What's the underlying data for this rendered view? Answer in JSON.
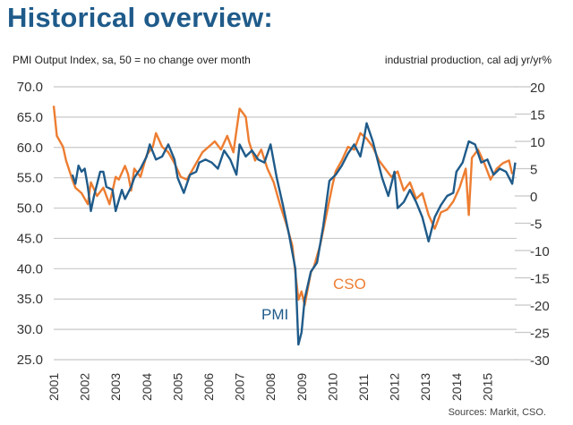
{
  "page": {
    "title": "Historical overview:",
    "left_axis_title": "PMI Output Index, sa, 50 = no change over month",
    "right_axis_title": "industrial production, cal adj  yr/yr%",
    "source": "Sources: Markit,  CSO."
  },
  "chart_data": {
    "type": "line",
    "title": "Historical overview:",
    "xlabel": "",
    "ylabel": "PMI Output Index, sa, 50 = no change over month",
    "y2label": "industrial production, cal adj  yr/yr%",
    "xlim": [
      2001,
      2016
    ],
    "ylim": [
      25,
      70
    ],
    "y2lim": [
      -30,
      20
    ],
    "grid": true,
    "legend": "inline labels",
    "x_ticks": [
      "2001",
      "2002",
      "2003",
      "2004",
      "2005",
      "2006",
      "2007",
      "2008",
      "2009",
      "2010",
      "2011",
      "2012",
      "2013",
      "2014",
      "2015"
    ],
    "y_ticks": [
      "70.0",
      "65.0",
      "60.0",
      "55.0",
      "50.0",
      "45.0",
      "40.0",
      "35.0",
      "30.0",
      "25.0"
    ],
    "y2_ticks": [
      "20",
      "15",
      "10",
      "5",
      "0",
      "-5",
      "-10",
      "-15",
      "-20",
      "-25",
      "-30"
    ],
    "series": [
      {
        "name": "PMI",
        "axis": "left",
        "color": "#1f5b8a",
        "label_text": "PMI",
        "x": [
          2001.6,
          2001.7,
          2001.8,
          2001.9,
          2002.0,
          2002.1,
          2002.2,
          2002.3,
          2002.5,
          2002.6,
          2002.7,
          2002.9,
          2003.0,
          2003.2,
          2003.3,
          2003.5,
          2003.6,
          2003.8,
          2004.0,
          2004.1,
          2004.3,
          2004.5,
          2004.7,
          2004.9,
          2005.0,
          2005.2,
          2005.4,
          2005.6,
          2005.7,
          2005.9,
          2006.1,
          2006.3,
          2006.5,
          2006.7,
          2006.9,
          2007.0,
          2007.2,
          2007.4,
          2007.6,
          2007.8,
          2008.0,
          2008.2,
          2008.4,
          2008.6,
          2008.8,
          2008.9,
          2009.0,
          2009.1,
          2009.3,
          2009.5,
          2009.7,
          2009.9,
          2010.1,
          2010.3,
          2010.5,
          2010.7,
          2010.9,
          2011.0,
          2011.1,
          2011.3,
          2011.5,
          2011.6,
          2011.8,
          2012.0,
          2012.1,
          2012.3,
          2012.5,
          2012.7,
          2012.9,
          2013.1,
          2013.3,
          2013.5,
          2013.7,
          2013.9,
          2014.0,
          2014.2,
          2014.4,
          2014.6,
          2014.8,
          2015.0,
          2015.2,
          2015.4,
          2015.6,
          2015.8,
          2015.9
        ],
        "values": [
          55.5,
          54.0,
          57.0,
          56.0,
          56.5,
          53.5,
          49.5,
          52.0,
          56.0,
          56.0,
          53.5,
          53.0,
          49.5,
          53.0,
          51.5,
          53.5,
          55.0,
          56.5,
          58.5,
          60.5,
          58.0,
          58.5,
          60.5,
          58.0,
          55.0,
          52.5,
          55.5,
          56.0,
          57.5,
          58.0,
          57.5,
          56.5,
          59.5,
          58.0,
          55.5,
          60.5,
          58.5,
          59.5,
          58.0,
          57.5,
          60.5,
          55.0,
          50.5,
          45.5,
          40.0,
          27.5,
          29.5,
          35.0,
          39.5,
          41.0,
          47.0,
          54.5,
          55.5,
          57.0,
          59.0,
          60.5,
          58.5,
          61.0,
          64.0,
          61.0,
          57.0,
          55.0,
          52.0,
          56.0,
          50.0,
          51.0,
          53.0,
          51.0,
          48.5,
          44.5,
          48.5,
          50.5,
          52.0,
          52.5,
          56.0,
          57.5,
          61.0,
          60.5,
          57.5,
          58.0,
          55.5,
          56.5,
          56.0,
          54.0,
          57.5
        ]
      },
      {
        "name": "CSO",
        "axis": "right",
        "color": "#ed7d31",
        "label_text": "CSO",
        "x": [
          2001.0,
          2001.1,
          2001.3,
          2001.4,
          2001.6,
          2001.7,
          2001.9,
          2002.1,
          2002.2,
          2002.4,
          2002.6,
          2002.8,
          2003.0,
          2003.1,
          2003.3,
          2003.4,
          2003.5,
          2003.6,
          2003.8,
          2004.0,
          2004.2,
          2004.3,
          2004.5,
          2004.7,
          2004.9,
          2005.1,
          2005.3,
          2005.5,
          2005.6,
          2005.8,
          2006.0,
          2006.2,
          2006.4,
          2006.6,
          2006.8,
          2007.0,
          2007.2,
          2007.3,
          2007.5,
          2007.7,
          2007.9,
          2008.1,
          2008.3,
          2008.5,
          2008.7,
          2008.9,
          2009.0,
          2009.1,
          2009.3,
          2009.4,
          2009.6,
          2009.8,
          2010.0,
          2010.1,
          2010.3,
          2010.5,
          2010.7,
          2010.9,
          2011.1,
          2011.3,
          2011.5,
          2011.7,
          2011.9,
          2012.1,
          2012.3,
          2012.5,
          2012.7,
          2012.9,
          2013.1,
          2013.3,
          2013.5,
          2013.7,
          2013.9,
          2014.1,
          2014.3,
          2014.4,
          2014.5,
          2014.7,
          2014.9,
          2015.1,
          2015.3,
          2015.5,
          2015.7,
          2015.8
        ],
        "values": [
          16.5,
          11.0,
          9.0,
          6.5,
          3.0,
          1.5,
          0.5,
          -1.5,
          2.5,
          0.0,
          1.5,
          -1.5,
          3.5,
          3.0,
          5.5,
          4.0,
          1.0,
          5.0,
          3.5,
          7.5,
          9.0,
          11.5,
          9.0,
          8.0,
          6.0,
          3.5,
          3.0,
          5.0,
          6.0,
          8.0,
          9.0,
          10.0,
          8.5,
          11.0,
          8.0,
          16.0,
          14.5,
          10.0,
          6.5,
          8.5,
          5.0,
          2.5,
          -1.5,
          -5.0,
          -9.0,
          -19.0,
          -17.5,
          -20.0,
          -14.0,
          -13.0,
          -9.0,
          -3.5,
          2.0,
          4.5,
          6.5,
          9.0,
          8.5,
          11.5,
          10.5,
          9.0,
          6.5,
          5.0,
          3.5,
          4.5,
          1.0,
          2.5,
          -0.5,
          0.5,
          -3.5,
          -6.0,
          -3.0,
          -2.5,
          -1.0,
          1.5,
          5.0,
          -3.5,
          7.0,
          8.5,
          6.0,
          3.0,
          5.0,
          6.0,
          6.5,
          4.0
        ]
      }
    ]
  }
}
